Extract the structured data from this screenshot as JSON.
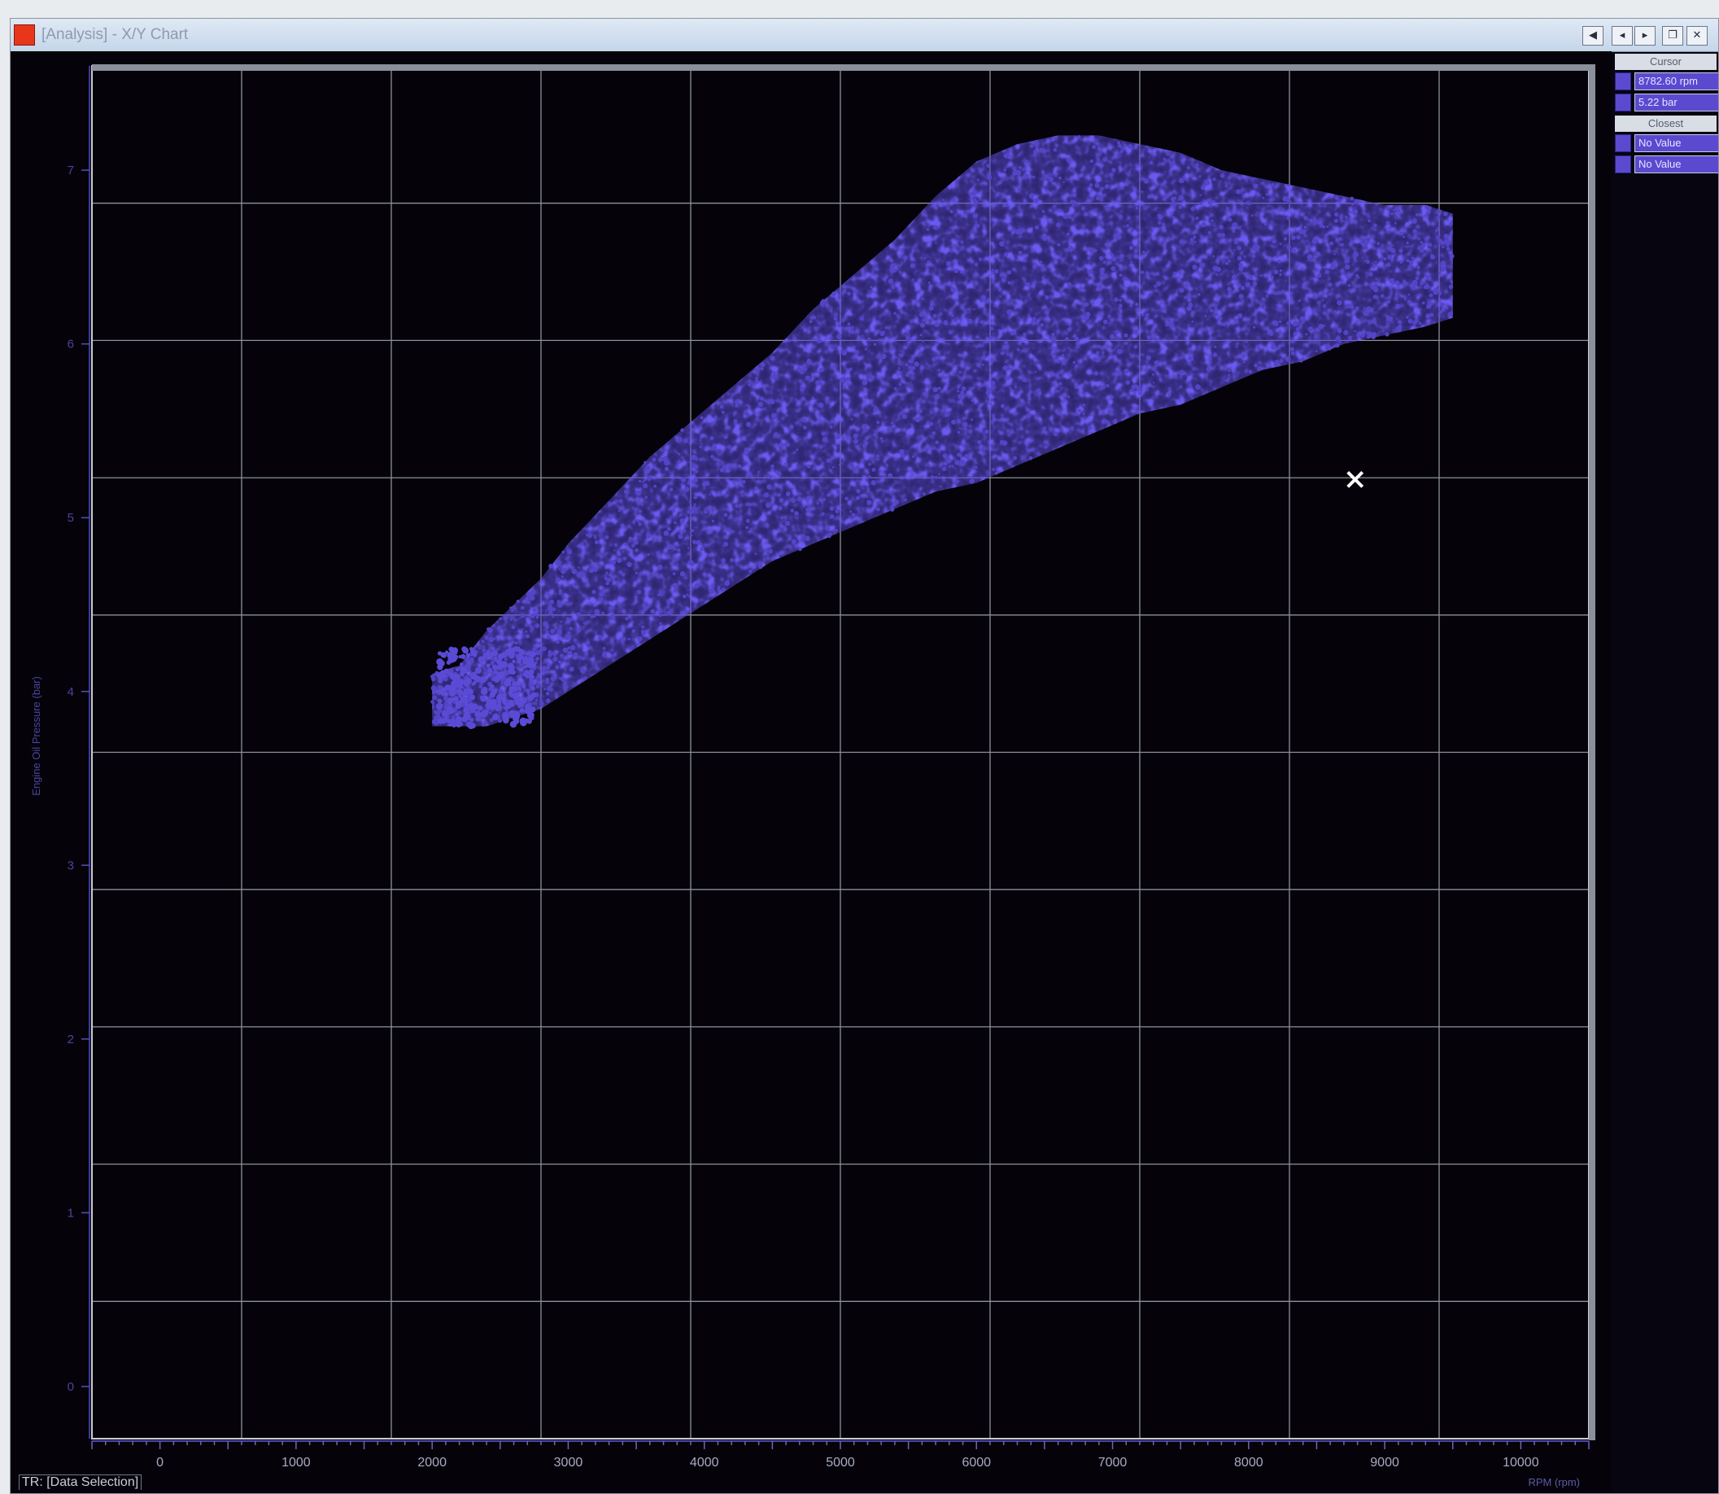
{
  "window": {
    "title": "[Analysis] - X/Y Chart",
    "buttons": [
      "◀",
      "◂",
      "▸",
      "❐",
      "✕"
    ]
  },
  "cursor_panel": {
    "cursor_header": "Cursor",
    "cursor_values": [
      "8782.60 rpm",
      "5.22 bar"
    ],
    "closest_header": "Closest",
    "closest_values": [
      "No Value",
      "No Value"
    ]
  },
  "status": {
    "selection": "TR: [Data Selection]"
  },
  "chart_data": {
    "type": "scatter",
    "title": "",
    "xlabel": "RPM (rpm)",
    "ylabel": "Engine Oil Pressure (bar)",
    "x_tick_labels": [
      "0",
      "1000",
      "2000",
      "3000",
      "4000",
      "5000",
      "6000",
      "7000",
      "8000",
      "9000",
      "10000"
    ],
    "y_tick_labels": [
      "0",
      "1",
      "2",
      "3",
      "4",
      "5",
      "6",
      "7"
    ],
    "xlim": [
      -500,
      10500
    ],
    "ylim": [
      -0.3,
      7.6
    ],
    "grid": true,
    "point_color": "#5344c8",
    "background": "#050309",
    "series": [
      {
        "values_description_free": true,
        "x": [
          2000,
          2200,
          2400,
          2600,
          2800,
          3000,
          3300,
          3600,
          3900,
          4200,
          4500,
          4800,
          5100,
          5400,
          5700,
          6000,
          6300,
          6600,
          6900,
          7200,
          7500,
          7800,
          8100,
          8400,
          8700,
          9000,
          9300,
          9500
        ],
        "y_low": [
          3.8,
          3.8,
          3.8,
          3.85,
          3.9,
          4.0,
          4.15,
          4.3,
          4.45,
          4.6,
          4.75,
          4.85,
          4.95,
          5.05,
          5.15,
          5.2,
          5.3,
          5.4,
          5.5,
          5.6,
          5.65,
          5.75,
          5.85,
          5.9,
          6.0,
          6.05,
          6.1,
          6.15
        ],
        "y_high": [
          4.1,
          4.15,
          4.35,
          4.5,
          4.65,
          4.85,
          5.1,
          5.35,
          5.55,
          5.75,
          5.95,
          6.2,
          6.4,
          6.6,
          6.85,
          7.05,
          7.15,
          7.2,
          7.2,
          7.15,
          7.1,
          7.0,
          6.95,
          6.9,
          6.85,
          6.8,
          6.8,
          6.75
        ]
      }
    ],
    "marker": {
      "x": 8782.6,
      "y": 5.22
    }
  }
}
